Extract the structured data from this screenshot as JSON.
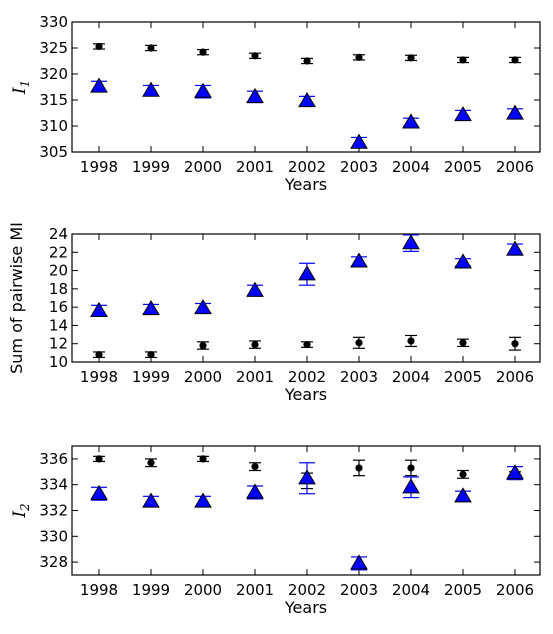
{
  "chart_data": [
    {
      "type": "scatter",
      "ylabel": "I",
      "ylabel_subscript": "1",
      "xlabel": "Years",
      "x": [
        "1998",
        "1999",
        "2000",
        "2001",
        "2002",
        "2003",
        "2004",
        "2005",
        "2006"
      ],
      "ylim": [
        305,
        330
      ],
      "yticks": [
        305,
        310,
        315,
        320,
        325,
        330
      ],
      "series": [
        {
          "marker": "circle",
          "color": "#000000",
          "values": [
            325.3,
            325.0,
            324.2,
            323.5,
            322.5,
            323.2,
            323.1,
            322.7,
            322.7
          ],
          "errors": [
            0.5,
            0.5,
            0.5,
            0.5,
            0.5,
            0.5,
            0.5,
            0.5,
            0.5
          ]
        },
        {
          "marker": "triangle",
          "color": "#0000ff",
          "values": [
            317.6,
            316.8,
            316.6,
            315.6,
            314.8,
            306.8,
            310.7,
            312.1,
            312.4
          ],
          "errors": [
            1.0,
            1.0,
            1.2,
            1.1,
            0.9,
            1.0,
            0.8,
            0.9,
            0.9
          ]
        }
      ]
    },
    {
      "type": "scatter",
      "ylabel": "Sum of pairwise MI",
      "xlabel": "Years",
      "x": [
        "1998",
        "1999",
        "2000",
        "2001",
        "2002",
        "2003",
        "2004",
        "2005",
        "2006"
      ],
      "ylim": [
        10,
        24
      ],
      "yticks": [
        10,
        12,
        14,
        16,
        18,
        20,
        22,
        24
      ],
      "series": [
        {
          "marker": "circle",
          "color": "#000000",
          "values": [
            10.8,
            10.8,
            11.8,
            11.9,
            11.9,
            12.1,
            12.3,
            12.1,
            12.0
          ],
          "errors": [
            0.3,
            0.3,
            0.4,
            0.4,
            0.3,
            0.6,
            0.6,
            0.4,
            0.7
          ]
        },
        {
          "marker": "triangle",
          "color": "#0000ff",
          "values": [
            15.6,
            15.8,
            15.9,
            17.8,
            19.6,
            21.0,
            23.0,
            20.9,
            22.3
          ],
          "errors": [
            0.6,
            0.5,
            0.5,
            0.6,
            1.2,
            0.5,
            0.9,
            0.4,
            0.6
          ]
        }
      ]
    },
    {
      "type": "scatter",
      "ylabel": "I",
      "ylabel_subscript": "2",
      "xlabel": "Years",
      "x": [
        "1998",
        "1999",
        "2000",
        "2001",
        "2002",
        "2003",
        "2004",
        "2005",
        "2006"
      ],
      "ylim": [
        327,
        337
      ],
      "yticks": [
        328,
        330,
        332,
        334,
        336
      ],
      "series": [
        {
          "marker": "circle",
          "color": "#000000",
          "values": [
            336.0,
            335.7,
            336.0,
            335.4,
            334.3,
            335.3,
            335.3,
            334.8,
            334.7
          ],
          "errors": [
            0.2,
            0.3,
            0.2,
            0.3,
            0.6,
            0.6,
            0.6,
            0.3,
            0.3
          ]
        },
        {
          "marker": "triangle",
          "color": "#0000ff",
          "values": [
            333.3,
            332.7,
            332.7,
            333.4,
            334.5,
            327.9,
            333.8,
            333.1,
            334.9
          ],
          "errors": [
            0.5,
            0.4,
            0.4,
            0.5,
            1.2,
            0.5,
            0.8,
            0.4,
            0.5
          ]
        }
      ]
    }
  ]
}
